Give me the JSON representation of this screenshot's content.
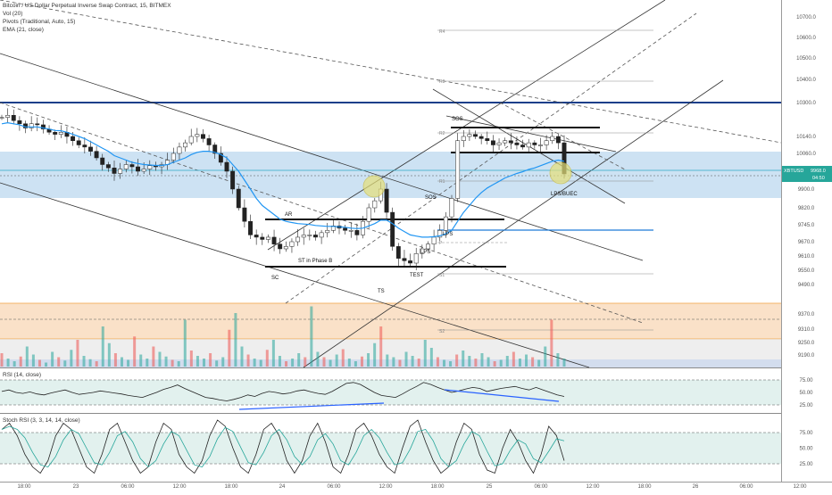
{
  "header": {
    "title": "Bitcoin / US Dollar Perpetual Inverse Swap Contract, 15, BITMEX",
    "studies": [
      "Vol (20)",
      "Pivots (Traditional, Auto, 15)",
      "EMA (21, close)"
    ],
    "rsi_label": "RSI (14, close)",
    "stoch_label": "Stoch RSI (3, 3, 14, 14, close)"
  },
  "chart_data": {
    "type": "line",
    "title": "Bitcoin / US Dollar Perpetual Inverse Swap Contract, 15, BITMEX",
    "y_ticks": [
      10700,
      10600,
      10500,
      10400,
      10300,
      10140,
      10060,
      9900,
      9820,
      9745,
      9670,
      9610,
      9550,
      9490,
      9370,
      9310,
      9250,
      9190
    ],
    "x_ticks": [
      "18:00",
      "23",
      "06:00",
      "12:00",
      "18:00",
      "24",
      "06:00",
      "12:00",
      "18:00",
      "25",
      "06:00",
      "12:00",
      "18:00",
      "26",
      "06:00",
      "12:00"
    ],
    "price_label": {
      "symbol": "XBTUSD",
      "value": "9968.0",
      "countdown": "04:50"
    },
    "pivot_labels": [
      "R4",
      "R3",
      "R2",
      "R1",
      "P",
      "S1",
      "S2"
    ],
    "wyckoff_labels": [
      "AR",
      "SC",
      "ST in Phase B",
      "TS",
      "TEST",
      "LPS",
      "SOS",
      "LPS",
      "SOS",
      "LPS/BUEC"
    ],
    "series": [
      {
        "values": [
          10230,
          10240,
          10215,
          10200,
          10180,
          10200,
          10195,
          10175,
          10160,
          10150,
          10160,
          10140,
          10120,
          10100,
          10090,
          10070,
          10040,
          10010,
          9995,
          9970,
          9990,
          10010,
          10000,
          9980,
          9990,
          10005,
          10000,
          10010,
          10030,
          10060,
          10090,
          10110,
          10140,
          10150,
          10130,
          10100,
          10060,
          10020,
          9980,
          9900,
          9820,
          9760,
          9700,
          9690,
          9680,
          9690,
          9660,
          9640,
          9650,
          9670,
          9690,
          9700,
          9700,
          9690,
          9710,
          9720,
          9740,
          9730,
          9720,
          9720,
          9700,
          9760,
          9820,
          9850,
          9900,
          9800,
          9650,
          9600,
          9590,
          9580,
          9620,
          9640,
          9660,
          9690,
          9720,
          9780,
          9860,
          10120,
          10140,
          10150,
          10140,
          10130,
          10120,
          10100,
          10110,
          10120,
          10110,
          10100,
          10090,
          10110,
          10100,
          10100,
          10120,
          10140,
          10110,
          9968
        ]
      },
      {
        "values": [
          10200,
          10205,
          10200,
          10195,
          10185,
          10185,
          10185,
          10180,
          10175,
          10168,
          10167,
          10160,
          10150,
          10140,
          10130,
          10115,
          10100,
          10085,
          10070,
          10050,
          10040,
          10030,
          10020,
          10015,
          10010,
          10008,
          10006,
          10006,
          10010,
          10020,
          10030,
          10040,
          10055,
          10065,
          10070,
          10070,
          10065,
          10055,
          10040,
          10010,
          9980,
          9940,
          9900,
          9860,
          9830,
          9810,
          9790,
          9770,
          9760,
          9755,
          9750,
          9748,
          9746,
          9742,
          9740,
          9738,
          9738,
          9736,
          9734,
          9730,
          9728,
          9730,
          9740,
          9750,
          9765,
          9765,
          9750,
          9730,
          9715,
          9700,
          9695,
          9690,
          9690,
          9692,
          9696,
          9705,
          9720,
          9760,
          9800,
          9830,
          9860,
          9885,
          9905,
          9920,
          9935,
          9950,
          9960,
          9970,
          9978,
          9988,
          9995,
          10005,
          10015,
          10025,
          10030,
          10025
        ]
      }
    ],
    "rsi": {
      "ticks": [
        75.0,
        50.0,
        25.0
      ],
      "values": [
        52,
        55,
        50,
        48,
        51,
        47,
        45,
        49,
        52,
        55,
        50,
        46,
        48,
        50,
        53,
        51,
        49,
        47,
        44,
        42,
        40,
        45,
        50,
        56,
        60,
        65,
        58,
        52,
        46,
        40,
        38,
        35,
        33,
        36,
        40,
        45,
        42,
        48,
        52,
        50,
        47,
        49,
        53,
        55,
        51,
        48,
        46,
        52,
        60,
        68,
        70,
        66,
        58,
        50,
        44,
        42,
        40,
        47,
        55,
        62,
        70,
        66,
        60,
        55,
        50,
        53,
        57,
        60,
        58,
        52,
        55,
        58,
        60,
        62,
        58,
        55,
        60,
        55,
        50,
        45,
        42
      ]
    },
    "stoch": {
      "ticks": [
        75.0,
        50.0,
        25.0
      ],
      "values": [
        80,
        90,
        70,
        40,
        20,
        10,
        30,
        70,
        90,
        80,
        50,
        20,
        10,
        40,
        80,
        90,
        60,
        30,
        10,
        20,
        60,
        90,
        80,
        40,
        20,
        10,
        30,
        70,
        95,
        85,
        50,
        20,
        10,
        40,
        80,
        90,
        70,
        30,
        10,
        30,
        70,
        90,
        60,
        20,
        10,
        40,
        80,
        90,
        70,
        40,
        20,
        10,
        50,
        85,
        95,
        60,
        30,
        10,
        20,
        60,
        90,
        80,
        40,
        15,
        10,
        50,
        80,
        60,
        30,
        10,
        40,
        85,
        70,
        30
      ]
    },
    "volume": {
      "values": [
        20,
        12,
        8,
        15,
        30,
        18,
        10,
        6,
        22,
        14,
        9,
        25,
        40,
        16,
        11,
        8,
        60,
        35,
        20,
        14,
        10,
        45,
        18,
        12,
        30,
        22,
        15,
        10,
        8,
        70,
        24,
        16,
        12,
        20,
        9,
        14,
        55,
        80,
        30,
        18,
        12,
        10,
        25,
        40,
        16,
        8,
        12,
        20,
        14,
        90,
        22,
        14,
        10,
        18,
        26,
        12,
        8,
        15,
        20,
        35,
        60,
        18,
        14,
        10,
        22,
        16,
        12,
        40,
        28,
        14,
        10,
        8,
        18,
        24,
        16,
        12,
        20,
        14,
        8,
        10,
        16,
        22,
        12,
        18,
        14,
        10,
        30,
        70,
        20,
        12
      ]
    }
  },
  "colors": {
    "ema": "#2196f3",
    "resistance": "#1a3f8a",
    "zone": "#bcd8ef",
    "volume_zone": "#f6c89a",
    "up_candle": "#26a69a",
    "down_candle": "#ef5350",
    "wick": "#222222",
    "highlight": "#e6e07a",
    "rsi_band": "#cfe8e2",
    "divergence": "#2962ff"
  }
}
